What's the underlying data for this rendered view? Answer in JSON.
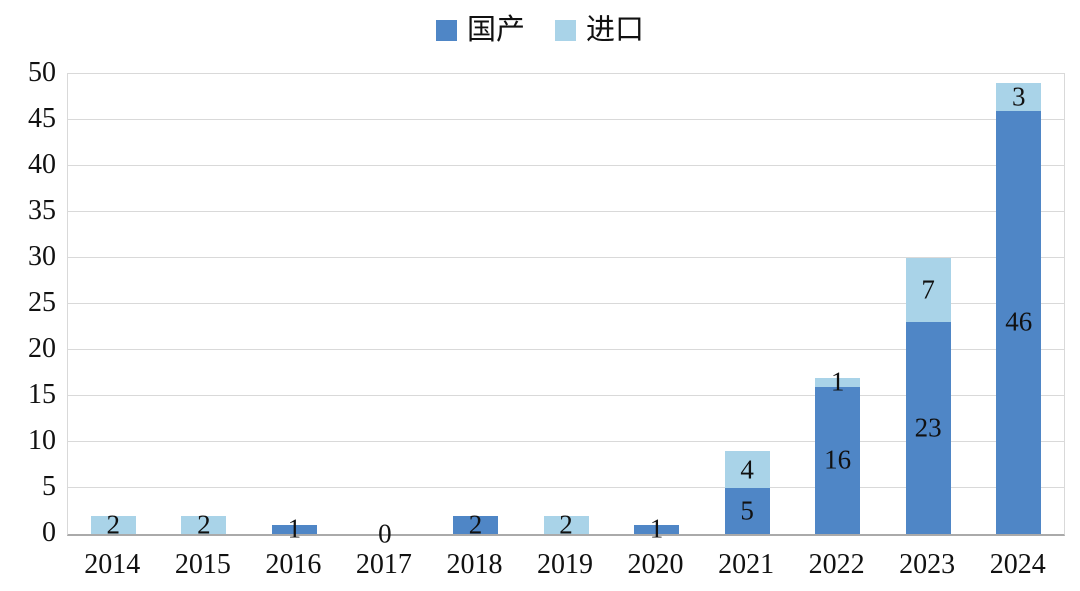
{
  "legend": {
    "items": [
      {
        "id": "domestic",
        "label": "国产",
        "color": "#4f86c6"
      },
      {
        "id": "import",
        "label": "进口",
        "color": "#a9d3e8"
      }
    ]
  },
  "chart_data": {
    "type": "bar",
    "stacked": true,
    "title": "",
    "xlabel": "",
    "ylabel": "",
    "categories": [
      "2014",
      "2015",
      "2016",
      "2017",
      "2018",
      "2019",
      "2020",
      "2021",
      "2022",
      "2023",
      "2024"
    ],
    "series": [
      {
        "id": "domestic",
        "name": "国产",
        "color": "#4f86c6",
        "values": [
          0,
          0,
          1,
          0,
          2,
          0,
          1,
          5,
          16,
          23,
          46
        ]
      },
      {
        "id": "import",
        "name": "进口",
        "color": "#a9d3e8",
        "values": [
          2,
          2,
          0,
          0,
          0,
          2,
          0,
          4,
          1,
          7,
          3
        ]
      }
    ],
    "totals": [
      2,
      2,
      1,
      0,
      2,
      2,
      1,
      9,
      17,
      30,
      49
    ],
    "zero_total_label": "0",
    "y_ticks": [
      0,
      5,
      10,
      15,
      20,
      25,
      30,
      35,
      40,
      45,
      50
    ],
    "ylim": [
      0,
      50
    ],
    "grid": true,
    "legend_position": "top",
    "colors": {
      "gridline": "#d9d9d9",
      "axis_line": "#aaaaaa",
      "text": "#111111",
      "background": "#ffffff"
    }
  }
}
